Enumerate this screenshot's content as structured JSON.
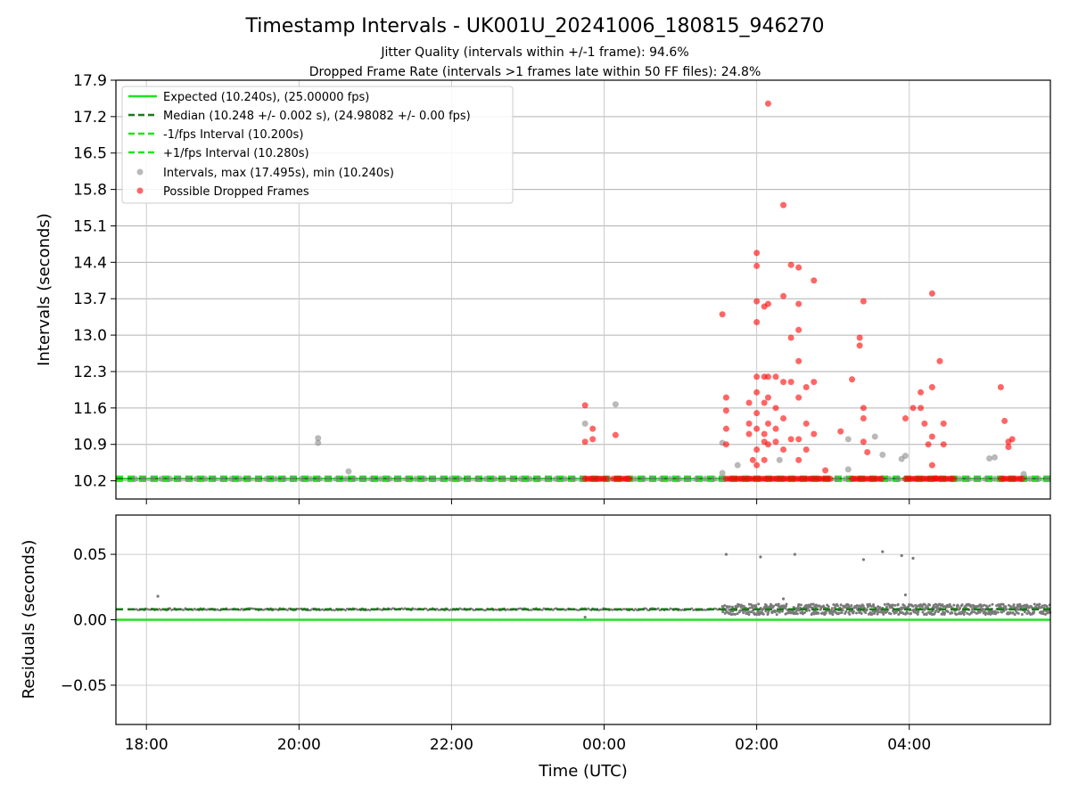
{
  "chart_data": [
    {
      "type": "scatter",
      "title": "Timestamp Intervals - UK001U_20241006_180815_946270",
      "subtitle_lines": [
        "Jitter Quality (intervals within +/-1 frame): 94.6%",
        "Dropped Frame Rate (intervals >1 frames late within 50 FF files): 24.8%"
      ],
      "ylabel": "Intervals (seconds)",
      "xlim_hours": [
        -6.4,
        5.85
      ],
      "ylim": [
        9.85,
        17.9
      ],
      "yticks": [
        "10.2",
        "10.9",
        "11.6",
        "12.3",
        "13.0",
        "13.7",
        "14.4",
        "15.1",
        "15.8",
        "16.5",
        "17.2",
        "17.9"
      ],
      "xticks": [
        {
          "value": -6,
          "label": "18:00"
        },
        {
          "value": -4,
          "label": "20:00"
        },
        {
          "value": -2,
          "label": "22:00"
        },
        {
          "value": 0,
          "label": "00:00"
        },
        {
          "value": 2,
          "label": "02:00"
        },
        {
          "value": 4,
          "label": "04:00"
        }
      ],
      "grid": true,
      "legend_position": "top-left",
      "lines": [
        {
          "name": "Expected (10.240s), (25.00000 fps)",
          "y": 10.24,
          "color": "#1ee41e",
          "style": "solid"
        },
        {
          "name": "Median (10.248 +/- 0.002 s), (24.98082 +/- 0.00 fps)",
          "y": 10.248,
          "color": "#1a7a1a",
          "style": "dashed"
        },
        {
          "name": "-1/fps Interval (10.200s)",
          "y": 10.2,
          "color": "#1ee41e",
          "style": "dashed"
        },
        {
          "name": "+1/fps Interval (10.280s)",
          "y": 10.28,
          "color": "#1ee41e",
          "style": "dashed"
        }
      ],
      "series": [
        {
          "name": "Intervals, max (17.495s), min (10.240s)",
          "color": "#8a8a8a",
          "baseline_y": 10.24,
          "baseline_ranges_hours": [
            [
              -6.15,
              5.85
            ]
          ],
          "points": [
            [
              -3.75,
              11.02
            ],
            [
              -3.75,
              10.93
            ],
            [
              -3.35,
              10.38
            ],
            [
              -0.25,
              11.3
            ],
            [
              0.15,
              11.67
            ],
            [
              1.55,
              10.93
            ],
            [
              1.55,
              10.35
            ],
            [
              1.75,
              10.5
            ],
            [
              2.3,
              10.6
            ],
            [
              3.2,
              11.0
            ],
            [
              3.2,
              10.42
            ],
            [
              3.55,
              11.05
            ],
            [
              3.65,
              10.7
            ],
            [
              3.9,
              10.62
            ],
            [
              3.95,
              10.68
            ],
            [
              5.05,
              10.63
            ],
            [
              5.12,
              10.65
            ],
            [
              5.5,
              10.33
            ]
          ]
        },
        {
          "name": "Possible Dropped Frames",
          "color": "#ff0000",
          "baseline_y": 10.24,
          "baseline_ranges_hours": [
            [
              -0.25,
              0.05
            ],
            [
              0.12,
              0.35
            ],
            [
              1.6,
              3.0
            ],
            [
              3.25,
              3.65
            ],
            [
              3.95,
              4.6
            ],
            [
              5.2,
              5.5
            ]
          ],
          "points": [
            [
              -0.25,
              11.65
            ],
            [
              -0.25,
              10.95
            ],
            [
              -0.15,
              11.2
            ],
            [
              -0.15,
              11.0
            ],
            [
              0.15,
              11.08
            ],
            [
              1.55,
              13.4
            ],
            [
              1.6,
              11.8
            ],
            [
              1.6,
              11.55
            ],
            [
              1.6,
              11.2
            ],
            [
              1.6,
              10.9
            ],
            [
              1.9,
              11.7
            ],
            [
              1.9,
              11.3
            ],
            [
              1.9,
              11.1
            ],
            [
              1.95,
              10.6
            ],
            [
              2.0,
              14.58
            ],
            [
              2.0,
              14.33
            ],
            [
              2.0,
              13.65
            ],
            [
              2.0,
              13.25
            ],
            [
              2.0,
              12.2
            ],
            [
              2.0,
              11.9
            ],
            [
              2.0,
              11.5
            ],
            [
              2.0,
              11.2
            ],
            [
              2.0,
              10.8
            ],
            [
              2.0,
              10.5
            ],
            [
              2.1,
              13.55
            ],
            [
              2.1,
              12.2
            ],
            [
              2.1,
              11.7
            ],
            [
              2.1,
              11.1
            ],
            [
              2.1,
              10.95
            ],
            [
              2.1,
              10.6
            ],
            [
              2.15,
              17.45
            ],
            [
              2.15,
              13.6
            ],
            [
              2.15,
              12.2
            ],
            [
              2.15,
              11.8
            ],
            [
              2.15,
              11.3
            ],
            [
              2.15,
              10.9
            ],
            [
              2.25,
              12.2
            ],
            [
              2.25,
              11.6
            ],
            [
              2.25,
              11.2
            ],
            [
              2.25,
              10.95
            ],
            [
              2.35,
              15.5
            ],
            [
              2.35,
              13.75
            ],
            [
              2.35,
              12.1
            ],
            [
              2.35,
              11.4
            ],
            [
              2.35,
              10.8
            ],
            [
              2.45,
              14.35
            ],
            [
              2.45,
              12.95
            ],
            [
              2.45,
              12.1
            ],
            [
              2.45,
              11.0
            ],
            [
              2.55,
              14.3
            ],
            [
              2.55,
              13.6
            ],
            [
              2.55,
              13.1
            ],
            [
              2.55,
              12.5
            ],
            [
              2.55,
              11.8
            ],
            [
              2.55,
              11.0
            ],
            [
              2.55,
              10.6
            ],
            [
              2.65,
              12.0
            ],
            [
              2.65,
              11.3
            ],
            [
              2.65,
              10.8
            ],
            [
              2.75,
              14.05
            ],
            [
              2.75,
              12.1
            ],
            [
              2.75,
              11.1
            ],
            [
              2.9,
              10.4
            ],
            [
              3.1,
              11.15
            ],
            [
              3.25,
              12.15
            ],
            [
              3.35,
              12.95
            ],
            [
              3.35,
              12.8
            ],
            [
              3.4,
              13.65
            ],
            [
              3.4,
              11.6
            ],
            [
              3.4,
              11.4
            ],
            [
              3.4,
              10.95
            ],
            [
              3.45,
              10.75
            ],
            [
              3.95,
              11.4
            ],
            [
              4.05,
              11.6
            ],
            [
              4.15,
              11.6
            ],
            [
              4.15,
              11.9
            ],
            [
              4.2,
              11.3
            ],
            [
              4.25,
              10.9
            ],
            [
              4.3,
              12.0
            ],
            [
              4.3,
              13.8
            ],
            [
              4.3,
              11.05
            ],
            [
              4.3,
              10.5
            ],
            [
              4.35,
              10.25
            ],
            [
              4.4,
              12.5
            ],
            [
              4.45,
              11.3
            ],
            [
              4.45,
              10.9
            ],
            [
              5.2,
              12.0
            ],
            [
              5.25,
              11.35
            ],
            [
              5.3,
              10.95
            ],
            [
              5.3,
              10.85
            ],
            [
              5.35,
              11.0
            ]
          ]
        }
      ]
    },
    {
      "type": "scatter",
      "ylabel": "Residuals (seconds)",
      "xlabel": "Time (UTC)",
      "xlim_hours": [
        -6.4,
        5.85
      ],
      "ylim": [
        -0.08,
        0.08
      ],
      "yticks": [
        "0.05",
        "0.00",
        "−0.05"
      ],
      "xticks": [
        {
          "value": -6,
          "label": "18:00"
        },
        {
          "value": -4,
          "label": "20:00"
        },
        {
          "value": -2,
          "label": "22:00"
        },
        {
          "value": 0,
          "label": "00:00"
        },
        {
          "value": 2,
          "label": "02:00"
        },
        {
          "value": 4,
          "label": "04:00"
        }
      ],
      "grid": true,
      "lines": [
        {
          "y": 0.0,
          "color": "#1ee41e",
          "style": "solid"
        },
        {
          "y": 0.008,
          "color": "#1a7a1a",
          "style": "dashed"
        }
      ],
      "series": [
        {
          "color": "#7a7a7a",
          "quiet_range_hours": [
            -6.15,
            1.55
          ],
          "quiet_level": 0.008,
          "busy_range_hours": [
            1.55,
            5.85
          ],
          "busy_level": 0.008,
          "outliers": [
            [
              -5.85,
              0.018
            ],
            [
              -0.25,
              0.002
            ],
            [
              1.6,
              0.05
            ],
            [
              2.05,
              0.048
            ],
            [
              2.5,
              0.05
            ],
            [
              3.4,
              0.046
            ],
            [
              3.65,
              0.052
            ],
            [
              3.9,
              0.049
            ],
            [
              4.05,
              0.047
            ],
            [
              2.35,
              0.016
            ],
            [
              3.95,
              0.019
            ]
          ]
        }
      ]
    }
  ]
}
